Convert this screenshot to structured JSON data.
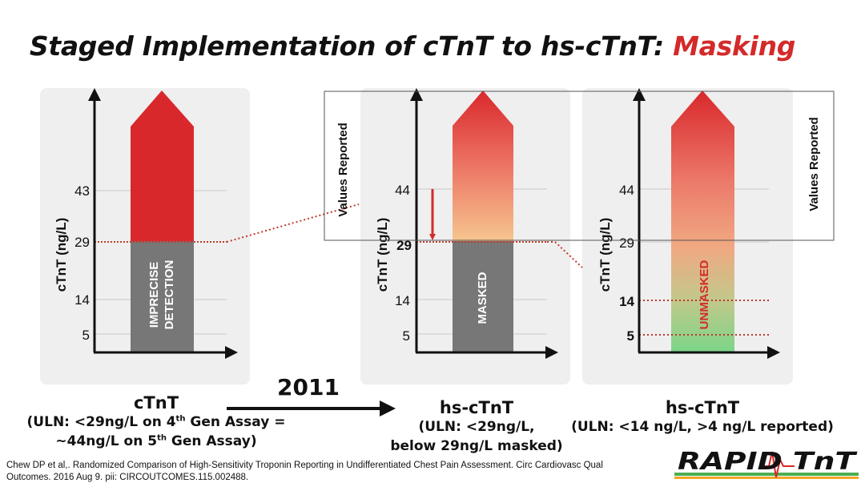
{
  "title": {
    "main": "Staged Implementation of cTnT to hs-cTnT:",
    "highlight": "Masking"
  },
  "panels": [
    {
      "ylabel": "cTnT (ng/L)",
      "ticks": [
        "43",
        "29",
        "14",
        "5"
      ],
      "bar_label_line1": "IMPRECISE",
      "bar_label_line2": "DETECTION",
      "caption_name": "cTnT",
      "caption_line1_a": "(ULN: <29ng/L on 4",
      "caption_line1_sup": "th",
      "caption_line1_b": " Gen Assay =",
      "caption_line2_a": "~44ng/L on 5",
      "caption_line2_sup": "th",
      "caption_line2_b": " Gen Assay)"
    },
    {
      "ylabel": "cTnT (ng/L)",
      "ticks": [
        "44",
        "29",
        "14",
        "5"
      ],
      "bar_label": "MASKED",
      "caption_name": "hs-cTnT",
      "caption_line1": "(ULN: <29ng/L,",
      "caption_line2": "below 29ng/L masked)"
    },
    {
      "ylabel": "cTnT (ng/L)",
      "ticks": [
        "44",
        "29",
        "14",
        "5"
      ],
      "bar_label": "UNMASKED",
      "caption_name": "hs-cTnT",
      "caption_line1": "(ULN: <14 ng/L, >4 ng/L reported)"
    }
  ],
  "values_reported_left": "Values Reported",
  "values_reported_right": "Values Reported",
  "year_label": "2011",
  "citation_line1": "Chew DP et al,. Randomized Comparison of High-Sensitivity Troponin Reporting in Undifferentiated Chest Pain Assessment. Circ Cardiovasc Qual",
  "citation_line2": "Outcomes. 2016 Aug 9. pii: CIRCOUTCOMES.115.002488.",
  "logo_text": "RAPID TnT",
  "colors": {
    "red": "#d42a2a",
    "gray": "#777777",
    "green": "#86d48a",
    "panel_bg": "#efefef",
    "accent_dotted": "#c0392b"
  }
}
